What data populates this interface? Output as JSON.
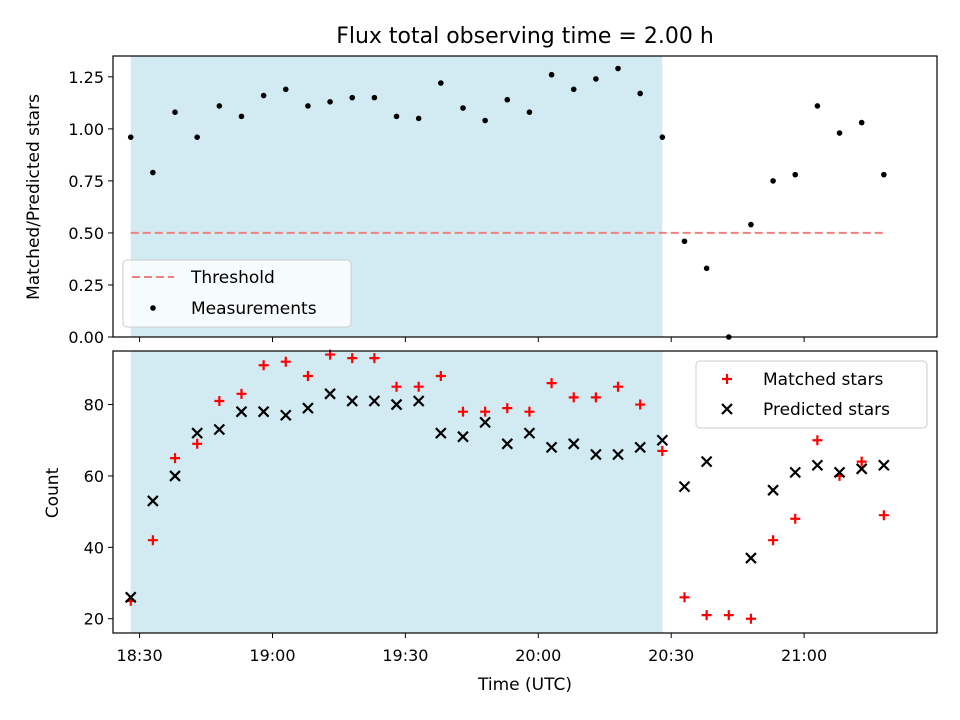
{
  "chart_data": [
    {
      "type": "scatter",
      "title": "Flux total observing time = 2.00 h",
      "ylabel": "Matched/Predicted stars",
      "xlabel": "",
      "xlim": [
        "18:24",
        "21:30"
      ],
      "ylim": [
        0,
        1.35
      ],
      "yticks": [
        "0.00",
        "0.25",
        "0.50",
        "0.75",
        "1.00",
        "1.25"
      ],
      "shaded_interval": [
        "18:28",
        "20:28"
      ],
      "shade_color": "#add8e6",
      "legend_position": "lower-left",
      "legend": [
        "Threshold",
        "Measurements"
      ],
      "threshold": {
        "name": "Threshold",
        "value": 0.5,
        "x_range": [
          "18:28",
          "21:18"
        ],
        "color": "#f08080"
      },
      "series": [
        {
          "name": "Measurements",
          "color": "#000000",
          "x": [
            "18:28",
            "18:33",
            "18:38",
            "18:43",
            "18:48",
            "18:53",
            "18:58",
            "19:03",
            "19:08",
            "19:13",
            "19:18",
            "19:23",
            "19:28",
            "19:33",
            "19:38",
            "19:43",
            "19:48",
            "19:53",
            "19:58",
            "20:03",
            "20:08",
            "20:13",
            "20:18",
            "20:23",
            "20:28",
            "20:33",
            "20:38",
            "20:43",
            "20:48",
            "20:53",
            "20:58",
            "21:03",
            "21:08",
            "21:13",
            "21:18"
          ],
          "y": [
            0.96,
            0.79,
            1.08,
            0.96,
            1.11,
            1.06,
            1.16,
            1.19,
            1.11,
            1.13,
            1.15,
            1.15,
            1.06,
            1.05,
            1.22,
            1.1,
            1.04,
            1.14,
            1.08,
            1.26,
            1.19,
            1.24,
            1.29,
            1.17,
            0.96,
            0.46,
            0.33,
            0.0,
            0.54,
            0.75,
            0.78,
            1.11,
            0.98,
            1.03,
            0.78
          ]
        }
      ]
    },
    {
      "type": "scatter",
      "title": "",
      "xlabel": "Time (UTC)",
      "ylabel": "Count",
      "xlim": [
        "18:24",
        "21:30"
      ],
      "xticks": [
        "18:30",
        "19:00",
        "19:30",
        "20:00",
        "20:30",
        "21:00"
      ],
      "ylim": [
        16,
        95
      ],
      "yticks": [
        "20",
        "40",
        "60",
        "80"
      ],
      "shaded_interval": [
        "18:28",
        "20:28"
      ],
      "shade_color": "#add8e6",
      "legend_position": "upper-right",
      "legend": [
        "Matched stars",
        "Predicted stars"
      ],
      "series": [
        {
          "name": "Matched stars",
          "marker": "+",
          "color": "#ff0000",
          "x": [
            "18:28",
            "18:33",
            "18:38",
            "18:43",
            "18:48",
            "18:53",
            "18:58",
            "19:03",
            "19:08",
            "19:13",
            "19:18",
            "19:23",
            "19:28",
            "19:33",
            "19:38",
            "19:43",
            "19:48",
            "19:53",
            "19:58",
            "20:03",
            "20:08",
            "20:13",
            "20:18",
            "20:23",
            "20:28",
            "20:33",
            "20:38",
            "20:43",
            "20:48",
            "20:53",
            "20:58",
            "21:03",
            "21:08",
            "21:13",
            "21:18"
          ],
          "y": [
            25,
            42,
            65,
            69,
            81,
            83,
            91,
            92,
            88,
            94,
            93,
            93,
            85,
            85,
            88,
            78,
            78,
            79,
            78,
            86,
            82,
            82,
            85,
            80,
            67,
            26,
            21,
            21,
            20,
            42,
            48,
            70,
            60,
            64,
            49
          ]
        },
        {
          "name": "Predicted stars",
          "marker": "x",
          "color": "#000000",
          "x": [
            "18:28",
            "18:33",
            "18:38",
            "18:43",
            "18:48",
            "18:53",
            "18:58",
            "19:03",
            "19:08",
            "19:13",
            "19:18",
            "19:23",
            "19:28",
            "19:33",
            "19:38",
            "19:43",
            "19:48",
            "19:53",
            "19:58",
            "20:03",
            "20:08",
            "20:13",
            "20:18",
            "20:23",
            "20:28",
            "20:33",
            "20:38",
            "20:43",
            "20:48",
            "20:53",
            "20:58",
            "21:03",
            "21:08",
            "21:13",
            "21:18"
          ],
          "y": [
            26,
            53,
            60,
            72,
            73,
            78,
            78,
            77,
            79,
            83,
            81,
            81,
            80,
            81,
            72,
            71,
            75,
            69,
            72,
            68,
            69,
            66,
            66,
            68,
            70,
            57,
            64,
            null,
            37,
            56,
            61,
            63,
            61,
            62,
            63
          ]
        }
      ]
    }
  ]
}
